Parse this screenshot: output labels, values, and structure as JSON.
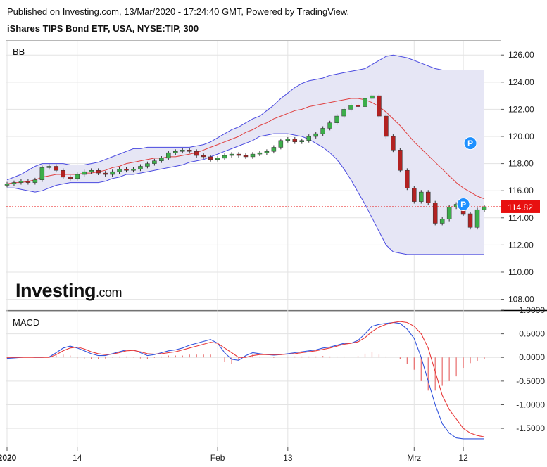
{
  "header": {
    "published": "Published on Investing.com, 13/Mar/2020 - 17:24:40 GMT, Powered by TradingView.",
    "instrument": "iShares TIPS Bond ETF, USA, NYSE:TIP, 300"
  },
  "branding": {
    "logo_main": "Investing",
    "logo_suffix": ".com"
  },
  "colors": {
    "up": "#3cae4a",
    "down": "#b22222",
    "band": "#4a4ae0",
    "band_fill": "#e6e6f5",
    "ma": "#e04040",
    "macd": "#3355dd",
    "signal": "#e83a3a",
    "hist": "#e86a6a",
    "last_price": "#e81010",
    "marker": "#1e90ff"
  },
  "chart_data": [
    {
      "type": "candlestick",
      "title": "BB",
      "price_axis_ticks": [
        "108.00",
        "110.00",
        "112.00",
        "114.00",
        "116.00",
        "118.00",
        "120.00",
        "122.00",
        "124.00",
        "126.00"
      ],
      "ylim": [
        107.2,
        127.1
      ],
      "last_price": 114.82,
      "last_price_label": "114.82",
      "x_ticks": [
        {
          "label": "2020",
          "i": 0
        },
        {
          "label": "14",
          "i": 10
        },
        {
          "label": "Feb",
          "i": 30
        },
        {
          "label": "13",
          "i": 40
        },
        {
          "label": "Mrz",
          "i": 58
        },
        {
          "label": "12",
          "i": 65
        }
      ],
      "markers": [
        {
          "label": "P",
          "index": 66,
          "price": 119.5
        },
        {
          "label": "P",
          "index": 65,
          "price": 115.0
        }
      ],
      "close": [
        116.5,
        116.6,
        116.7,
        116.6,
        116.8,
        117.7,
        117.8,
        117.5,
        117.0,
        116.9,
        117.2,
        117.4,
        117.5,
        117.3,
        117.2,
        117.4,
        117.6,
        117.5,
        117.6,
        117.8,
        118.0,
        118.2,
        118.4,
        118.8,
        118.9,
        119.0,
        118.9,
        118.6,
        118.5,
        118.3,
        118.4,
        118.6,
        118.7,
        118.6,
        118.5,
        118.7,
        118.8,
        118.9,
        119.2,
        119.7,
        119.8,
        119.6,
        119.7,
        120.0,
        120.2,
        120.6,
        121.0,
        121.5,
        122.0,
        122.3,
        122.2,
        122.8,
        123.0,
        121.5,
        120.0,
        119.0,
        117.5,
        116.2,
        115.2,
        115.9,
        115.1,
        113.6,
        113.9,
        114.8,
        115.0,
        114.3,
        113.3,
        114.6,
        114.82
      ],
      "bands": {
        "upper": [
          116.8,
          117.0,
          117.2,
          117.5,
          117.8,
          118.0,
          118.0,
          118.0,
          118.0,
          117.9,
          117.9,
          117.9,
          118.0,
          118.1,
          118.3,
          118.5,
          118.7,
          118.9,
          119.1,
          119.1,
          119.2,
          119.2,
          119.2,
          119.2,
          119.2,
          119.2,
          119.2,
          119.3,
          119.4,
          119.6,
          119.9,
          120.2,
          120.5,
          120.7,
          121.0,
          121.3,
          121.5,
          121.9,
          122.3,
          122.8,
          123.2,
          123.6,
          123.9,
          124.1,
          124.2,
          124.3,
          124.5,
          124.6,
          124.7,
          124.8,
          124.9,
          125.0,
          125.3,
          125.6,
          125.9,
          126.0,
          125.9,
          125.8,
          125.6,
          125.4,
          125.2,
          125.0,
          124.9,
          124.9,
          124.9,
          124.9,
          124.9,
          124.9,
          124.9
        ],
        "middle": [
          116.5,
          116.6,
          116.6,
          116.7,
          116.8,
          117.0,
          117.1,
          117.2,
          117.2,
          117.2,
          117.2,
          117.3,
          117.3,
          117.4,
          117.5,
          117.7,
          117.8,
          118.0,
          118.1,
          118.2,
          118.3,
          118.4,
          118.4,
          118.5,
          118.5,
          118.6,
          118.7,
          118.8,
          119.0,
          119.2,
          119.4,
          119.6,
          119.8,
          120.0,
          120.3,
          120.5,
          120.8,
          121.0,
          121.3,
          121.5,
          121.7,
          121.9,
          122.0,
          122.2,
          122.3,
          122.4,
          122.5,
          122.6,
          122.7,
          122.8,
          122.8,
          122.7,
          122.5,
          122.2,
          121.8,
          121.3,
          120.8,
          120.2,
          119.6,
          119.1,
          118.6,
          118.1,
          117.6,
          117.1,
          116.6,
          116.2,
          115.9,
          115.6,
          115.4
        ],
        "lower": [
          116.2,
          116.2,
          116.1,
          116.0,
          115.9,
          116.0,
          116.2,
          116.4,
          116.5,
          116.6,
          116.6,
          116.6,
          116.6,
          116.6,
          116.7,
          116.9,
          117.0,
          117.2,
          117.2,
          117.3,
          117.4,
          117.5,
          117.6,
          117.7,
          117.8,
          117.9,
          118.1,
          118.2,
          118.3,
          118.5,
          118.7,
          118.9,
          119.1,
          119.3,
          119.5,
          119.7,
          120.0,
          120.1,
          120.2,
          120.2,
          120.2,
          120.1,
          120.0,
          119.8,
          119.5,
          119.2,
          118.8,
          118.3,
          117.6,
          116.8,
          115.9,
          115.0,
          114.0,
          113.0,
          112.0,
          111.5,
          111.4,
          111.3,
          111.3,
          111.3,
          111.3,
          111.3,
          111.3,
          111.3,
          111.3,
          111.3,
          111.3,
          111.3,
          111.3
        ]
      }
    },
    {
      "type": "line",
      "title": "MACD",
      "yticks": [
        "1.0000",
        "0.5000",
        "0.0000",
        "-0.5000",
        "-1.0000",
        "-1.5000"
      ],
      "ylim": [
        -1.9,
        1.0
      ],
      "series": [
        {
          "values": [
            -0.02,
            -0.01,
            0.0,
            0.01,
            0.0,
            0.0,
            0.01,
            0.1,
            0.2,
            0.24,
            0.2,
            0.14,
            0.08,
            0.04,
            0.04,
            0.08,
            0.12,
            0.16,
            0.16,
            0.1,
            0.04,
            0.06,
            0.1,
            0.14,
            0.16,
            0.2,
            0.26,
            0.3,
            0.34,
            0.38,
            0.3,
            0.1,
            -0.04,
            -0.06,
            0.04,
            0.1,
            0.08,
            0.06,
            0.05,
            0.06,
            0.08,
            0.1,
            0.12,
            0.14,
            0.16,
            0.2,
            0.22,
            0.26,
            0.3,
            0.3,
            0.36,
            0.5,
            0.66,
            0.7,
            0.72,
            0.74,
            0.72,
            0.6,
            0.4,
            0.0,
            -0.5,
            -1.0,
            -1.4,
            -1.6,
            -1.7,
            -1.72,
            -1.72,
            -1.72,
            -1.72
          ]
        },
        {
          "values": [
            0.0,
            0.0,
            0.0,
            0.0,
            0.0,
            0.0,
            0.0,
            0.06,
            0.14,
            0.2,
            0.22,
            0.18,
            0.12,
            0.08,
            0.06,
            0.07,
            0.1,
            0.14,
            0.15,
            0.12,
            0.08,
            0.07,
            0.08,
            0.1,
            0.12,
            0.16,
            0.2,
            0.24,
            0.28,
            0.32,
            0.3,
            0.2,
            0.1,
            0.0,
            0.0,
            0.04,
            0.06,
            0.06,
            0.06,
            0.06,
            0.07,
            0.08,
            0.1,
            0.12,
            0.14,
            0.17,
            0.2,
            0.24,
            0.28,
            0.3,
            0.33,
            0.42,
            0.55,
            0.64,
            0.7,
            0.74,
            0.76,
            0.74,
            0.66,
            0.5,
            0.2,
            -0.3,
            -0.8,
            -1.1,
            -1.3,
            -1.5,
            -1.6,
            -1.65,
            -1.68
          ]
        }
      ]
    }
  ]
}
